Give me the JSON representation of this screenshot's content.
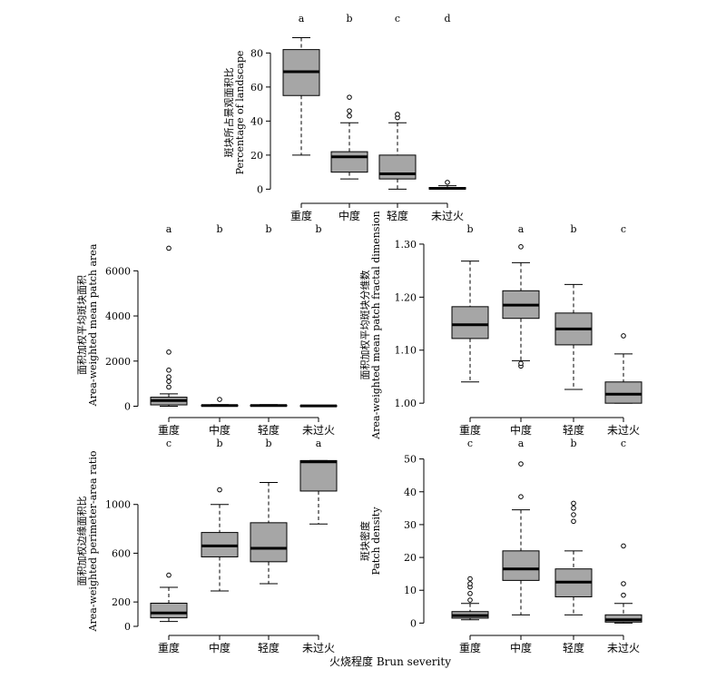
{
  "x_title": "火烧程度 Brun severity",
  "categories": [
    "重度",
    "中度",
    "轻度",
    "未过火"
  ],
  "colors": {
    "box_fill": "#a6a6a6",
    "stroke": "#000000",
    "median": "#000000"
  },
  "chart_data": [
    {
      "type": "box",
      "ylabel_cn": "斑块所占景观面积比",
      "ylabel_en": "Percentage of landscape",
      "ylim": [
        -3,
        93
      ],
      "yticks": [
        0,
        20,
        40,
        60,
        80
      ],
      "letters": [
        "a",
        "b",
        "c",
        "d"
      ],
      "boxes": [
        {
          "whisker_low": 20,
          "q1": 55,
          "median": 69,
          "q3": 82,
          "whisker_high": 89,
          "outliers": []
        },
        {
          "whisker_low": 6,
          "q1": 10,
          "median": 19,
          "q3": 22,
          "whisker_high": 39,
          "outliers": [
            43,
            46,
            54
          ]
        },
        {
          "whisker_low": 0,
          "q1": 6,
          "median": 9,
          "q3": 20,
          "whisker_high": 39,
          "outliers": [
            42,
            44
          ]
        },
        {
          "whisker_low": 0,
          "q1": 0,
          "median": 0.5,
          "q3": 1,
          "whisker_high": 2,
          "outliers": [
            4
          ]
        }
      ]
    },
    {
      "type": "box",
      "ylabel_cn": "面积加权平均斑块面积",
      "ylabel_en": "Area-weighted mean patch area",
      "ylim": [
        -100,
        7300
      ],
      "yticks": [
        0,
        2000,
        4000,
        6000
      ],
      "letters": [
        "a",
        "b",
        "b",
        "b"
      ],
      "boxes": [
        {
          "whisker_low": 0,
          "q1": 60,
          "median": 250,
          "q3": 400,
          "whisker_high": 550,
          "outliers": [
            850,
            1100,
            1300,
            1600,
            2400,
            7000
          ]
        },
        {
          "whisker_low": 0,
          "q1": 10,
          "median": 30,
          "q3": 50,
          "whisker_high": 70,
          "outliers": [
            300
          ]
        },
        {
          "whisker_low": 0,
          "q1": 10,
          "median": 30,
          "q3": 50,
          "whisker_high": 70,
          "outliers": []
        },
        {
          "whisker_low": 0,
          "q1": 5,
          "median": 15,
          "q3": 30,
          "whisker_high": 40,
          "outliers": []
        }
      ]
    },
    {
      "type": "box",
      "ylabel_cn": "面积加权平均斑块分维数",
      "ylabel_en": "Area-weighted mean patch fractal dimension",
      "ylim": [
        0.99,
        1.305
      ],
      "yticks": [
        1.0,
        1.1,
        1.2,
        1.3
      ],
      "tick_labels": [
        "1.00",
        "1.10",
        "1.20",
        "1.30"
      ],
      "letters": [
        "b",
        "a",
        "b",
        "c"
      ],
      "boxes": [
        {
          "whisker_low": 1.04,
          "q1": 1.122,
          "median": 1.148,
          "q3": 1.182,
          "whisker_high": 1.268,
          "outliers": []
        },
        {
          "whisker_low": 1.08,
          "q1": 1.16,
          "median": 1.185,
          "q3": 1.212,
          "whisker_high": 1.265,
          "outliers": [
            1.07,
            1.075,
            1.295
          ]
        },
        {
          "whisker_low": 1.026,
          "q1": 1.11,
          "median": 1.14,
          "q3": 1.17,
          "whisker_high": 1.224,
          "outliers": []
        },
        {
          "whisker_low": 1.0,
          "q1": 1.0,
          "median": 1.017,
          "q3": 1.04,
          "whisker_high": 1.093,
          "outliers": [
            1.127
          ]
        }
      ]
    },
    {
      "type": "box",
      "ylabel_cn": "面积加权边缘面积比",
      "ylabel_en": "Area-weighted perimeter-area ratio",
      "ylim": [
        0,
        1400
      ],
      "yticks": [
        0,
        200,
        600,
        1000
      ],
      "letters": [
        "c",
        "b",
        "b",
        "a"
      ],
      "boxes": [
        {
          "whisker_low": 40,
          "q1": 70,
          "median": 110,
          "q3": 190,
          "whisker_high": 320,
          "outliers": [
            420
          ]
        },
        {
          "whisker_low": 290,
          "q1": 570,
          "median": 660,
          "q3": 770,
          "whisker_high": 1000,
          "outliers": [
            1120
          ]
        },
        {
          "whisker_low": 350,
          "q1": 530,
          "median": 640,
          "q3": 850,
          "whisker_high": 1180,
          "outliers": []
        },
        {
          "whisker_low": 840,
          "q1": 1110,
          "median": 1350,
          "q3": 1360,
          "whisker_high": 1360,
          "outliers": []
        }
      ]
    },
    {
      "type": "box",
      "ylabel_cn": "斑块密度",
      "ylabel_en": "Patch density",
      "ylim": [
        -1,
        51
      ],
      "yticks": [
        0,
        10,
        20,
        30,
        40,
        50
      ],
      "letters": [
        "c",
        "a",
        "b",
        "c"
      ],
      "boxes": [
        {
          "whisker_low": 1,
          "q1": 1.5,
          "median": 2.3,
          "q3": 3.5,
          "whisker_high": 6,
          "outliers": [
            7,
            9,
            11,
            12,
            13.5
          ]
        },
        {
          "whisker_low": 2.5,
          "q1": 13,
          "median": 16.5,
          "q3": 22,
          "whisker_high": 34.5,
          "outliers": [
            38.5,
            48.5
          ]
        },
        {
          "whisker_low": 2.5,
          "q1": 8,
          "median": 12.5,
          "q3": 16.5,
          "whisker_high": 22,
          "outliers": [
            31,
            33,
            35,
            36.5
          ]
        },
        {
          "whisker_low": 0,
          "q1": 0.3,
          "median": 1,
          "q3": 2.5,
          "whisker_high": 6,
          "outliers": [
            8.5,
            12,
            23.5
          ]
        }
      ]
    }
  ]
}
